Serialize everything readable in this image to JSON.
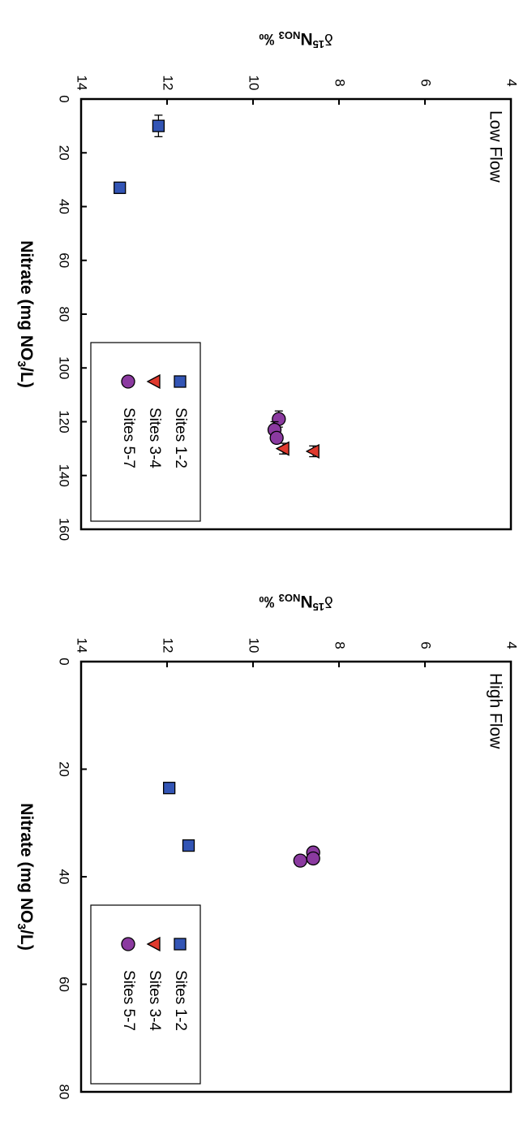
{
  "chart_data": [
    {
      "type": "scatter",
      "panel_label": "Low Flow",
      "xlabel": "Nitrate (mg NO₃/L)",
      "ylabel": "δ¹⁵N_NO3 ‰",
      "xlim": [
        0,
        160
      ],
      "ylim": [
        4,
        14
      ],
      "xticks": [
        0,
        20,
        40,
        60,
        80,
        100,
        120,
        140,
        160
      ],
      "yticks": [
        4,
        6,
        8,
        10,
        12,
        14
      ],
      "grid": false,
      "legend": {
        "placement": "bottom-right",
        "entries": [
          "Sites 1-2",
          "Sites 3-4",
          "Sites 5-7"
        ]
      },
      "series": [
        {
          "name": "Sites 1-2",
          "marker": "square",
          "color": "#3355b5",
          "points": [
            {
              "x": 10,
              "y": 12.2,
              "xerr": 4
            },
            {
              "x": 33,
              "y": 13.1,
              "xerr": 2
            }
          ]
        },
        {
          "name": "Sites 3-4",
          "marker": "triangle",
          "color": "#e03a2e",
          "points": [
            {
              "x": 130,
              "y": 9.3,
              "xerr": 2
            },
            {
              "x": 131,
              "y": 8.6,
              "xerr": 2
            }
          ]
        },
        {
          "name": "Sites 5-7",
          "marker": "circle",
          "color": "#8b3aa0",
          "points": [
            {
              "x": 119,
              "y": 9.4,
              "xerr": 3
            },
            {
              "x": 123,
              "y": 9.5,
              "xerr": 3
            },
            {
              "x": 126,
              "y": 9.45,
              "xerr": 2
            }
          ]
        }
      ]
    },
    {
      "type": "scatter",
      "panel_label": "High Flow",
      "xlabel": "Nitrate (mg NO₃/L)",
      "ylabel": "δ¹⁵N_NO3 ‰",
      "xlim": [
        0,
        80
      ],
      "ylim": [
        4,
        14
      ],
      "xticks": [
        0,
        20,
        40,
        60,
        80
      ],
      "yticks": [
        4,
        6,
        8,
        10,
        12,
        14
      ],
      "grid": false,
      "legend": {
        "placement": "bottom-right",
        "entries": [
          "Sites 1-2",
          "Sites 3-4",
          "Sites 5-7"
        ]
      },
      "series": [
        {
          "name": "Sites 1-2",
          "marker": "square",
          "color": "#3355b5",
          "points": [
            {
              "x": 23.5,
              "y": 11.95,
              "xerr": 1
            },
            {
              "x": 34.2,
              "y": 11.5,
              "xerr": 1
            }
          ]
        },
        {
          "name": "Sites 3-4",
          "marker": "triangle",
          "color": "#e03a2e",
          "points": []
        },
        {
          "name": "Sites 5-7",
          "marker": "circle",
          "color": "#8b3aa0",
          "points": [
            {
              "x": 35.5,
              "y": 8.6,
              "xerr": 1
            },
            {
              "x": 36.6,
              "y": 8.6,
              "xerr": 1
            },
            {
              "x": 37,
              "y": 8.9,
              "xerr": 1
            }
          ]
        }
      ]
    }
  ]
}
